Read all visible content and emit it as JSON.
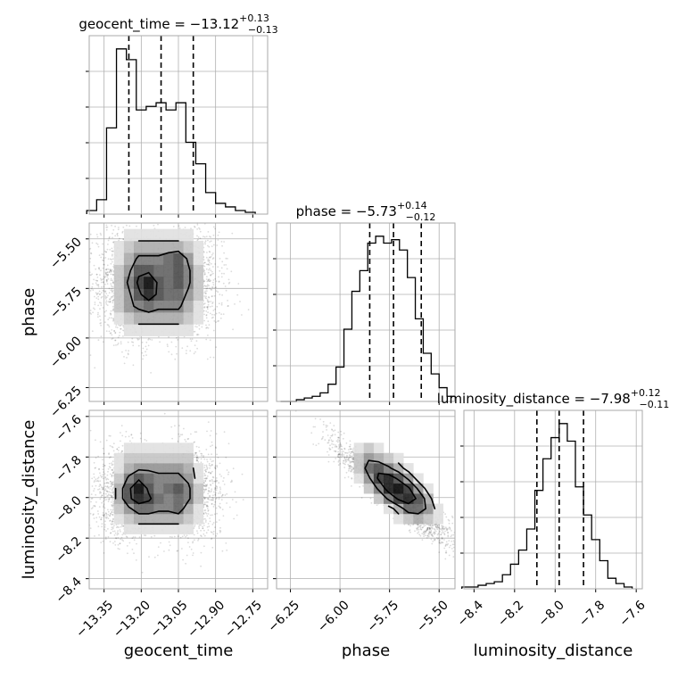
{
  "chart_data": {
    "type": "corner",
    "parameters": [
      "geocent_time",
      "phase",
      "luminosity_distance"
    ],
    "titles": [
      {
        "prefix": "geocent_time = −13.12",
        "plus": "+0.13",
        "minus": "−0.13"
      },
      {
        "prefix": "phase = −5.73",
        "plus": "+0.14",
        "minus": "−0.12"
      },
      {
        "prefix": "luminosity_distance = −7.98",
        "plus": "+0.12",
        "minus": "−0.11"
      }
    ],
    "axis_labels": {
      "x": [
        "geocent_time",
        "phase",
        "luminosity_distance"
      ],
      "y": [
        "phase",
        "luminosity_distance"
      ]
    },
    "ranges": {
      "geocent_time": [
        -13.41,
        -12.69
      ],
      "phase": [
        -6.32,
        -5.42
      ],
      "luminosity_distance": [
        -8.45,
        -7.57
      ]
    },
    "ticks": {
      "geocent_time": {
        "values": [
          -13.35,
          -13.2,
          -13.05,
          -12.9,
          -12.75
        ],
        "labels": [
          "−13.35",
          "−13.20",
          "−13.05",
          "−12.90",
          "−12.75"
        ]
      },
      "phase": {
        "values": [
          -6.25,
          -6.0,
          -5.75,
          -5.5
        ],
        "labels": [
          "−6.25",
          "−6.00",
          "−5.75",
          "−5.50"
        ]
      },
      "luminosity_distance": {
        "values": [
          -8.4,
          -8.2,
          -8.0,
          -7.8,
          -7.6
        ],
        "labels": [
          "−8.4",
          "−8.2",
          "−8.0",
          "−7.8",
          "−7.6"
        ]
      }
    },
    "quantiles": {
      "geocent_time": [
        -13.25,
        -13.12,
        -12.99
      ],
      "phase": [
        -5.85,
        -5.73,
        -5.59
      ],
      "luminosity_distance": [
        -8.09,
        -7.98,
        -7.86
      ]
    },
    "histograms": {
      "geocent_time": {
        "bin_edges": [
          -13.42,
          -13.38,
          -13.34,
          -13.3,
          -13.26,
          -13.22,
          -13.18,
          -13.14,
          -13.1,
          -13.06,
          -13.02,
          -12.98,
          -12.94,
          -12.9,
          -12.86,
          -12.82,
          -12.78,
          -12.74
        ],
        "counts": [
          2,
          8,
          48,
          92,
          86,
          58,
          60,
          62,
          58,
          62,
          40,
          28,
          12,
          6,
          4,
          2,
          1
        ]
      },
      "phase": {
        "bin_edges": [
          -6.3,
          -6.26,
          -6.22,
          -6.18,
          -6.14,
          -6.1,
          -6.06,
          -6.02,
          -5.98,
          -5.94,
          -5.9,
          -5.86,
          -5.82,
          -5.78,
          -5.74,
          -5.7,
          -5.66,
          -5.62,
          -5.58,
          -5.54,
          -5.5,
          -5.46,
          -5.42
        ],
        "counts": [
          0,
          0,
          1,
          2,
          3,
          5,
          10,
          20,
          42,
          64,
          76,
          92,
          96,
          92,
          94,
          88,
          72,
          48,
          28,
          16,
          8,
          3
        ]
      },
      "luminosity_distance": {
        "bin_edges": [
          -8.46,
          -8.42,
          -8.38,
          -8.34,
          -8.3,
          -8.26,
          -8.22,
          -8.18,
          -8.14,
          -8.1,
          -8.06,
          -8.02,
          -7.98,
          -7.94,
          -7.9,
          -7.86,
          -7.82,
          -7.78,
          -7.74,
          -7.7,
          -7.66,
          -7.62
        ],
        "counts": [
          1,
          1,
          2,
          3,
          4,
          8,
          14,
          22,
          34,
          56,
          74,
          86,
          94,
          84,
          58,
          42,
          28,
          16,
          6,
          3,
          1
        ]
      }
    },
    "hist2d": {
      "geocent_time_vs_phase": {
        "x_edges": [
          -13.31,
          -13.27,
          -13.23,
          -13.19,
          -13.15,
          -13.11,
          -13.07,
          -13.03,
          -12.99,
          -12.95
        ],
        "y_edges": [
          -5.99,
          -5.93,
          -5.87,
          -5.81,
          -5.75,
          -5.69,
          -5.63,
          -5.57,
          -5.51,
          -5.45
        ],
        "counts": [
          [
            0,
            1,
            1,
            1,
            1,
            1,
            1,
            1,
            0
          ],
          [
            1,
            2,
            3,
            3,
            3,
            3,
            3,
            2,
            1
          ],
          [
            2,
            4,
            5,
            6,
            5,
            5,
            5,
            3,
            1
          ],
          [
            2,
            4,
            7,
            9,
            7,
            6,
            6,
            4,
            2
          ],
          [
            2,
            5,
            8,
            10,
            7,
            6,
            7,
            5,
            2
          ],
          [
            2,
            4,
            7,
            7,
            6,
            6,
            7,
            5,
            2
          ],
          [
            1,
            3,
            5,
            5,
            5,
            6,
            7,
            4,
            1
          ],
          [
            1,
            2,
            3,
            3,
            3,
            3,
            3,
            2,
            1
          ],
          [
            0,
            1,
            1,
            1,
            1,
            1,
            1,
            1,
            0
          ]
        ]
      },
      "geocent_time_vs_luminosity_distance": {
        "x_edges": [
          -13.31,
          -13.27,
          -13.23,
          -13.19,
          -13.15,
          -13.11,
          -13.07,
          -13.03,
          -12.99,
          -12.95
        ],
        "y_edges": [
          -8.18,
          -8.13,
          -8.08,
          -8.03,
          -7.98,
          -7.93,
          -7.88,
          -7.83,
          -7.78,
          -7.73
        ],
        "counts": [
          [
            0,
            1,
            1,
            1,
            1,
            1,
            1,
            1,
            0
          ],
          [
            1,
            2,
            3,
            3,
            3,
            3,
            3,
            2,
            1
          ],
          [
            2,
            4,
            6,
            6,
            5,
            5,
            6,
            3,
            1
          ],
          [
            3,
            7,
            9,
            8,
            6,
            5,
            6,
            5,
            2
          ],
          [
            3,
            7,
            10,
            7,
            5,
            6,
            7,
            5,
            2
          ],
          [
            2,
            5,
            7,
            6,
            5,
            5,
            5,
            4,
            1
          ],
          [
            1,
            3,
            4,
            4,
            4,
            4,
            4,
            3,
            1
          ],
          [
            1,
            2,
            2,
            2,
            2,
            2,
            2,
            2,
            0
          ],
          [
            0,
            1,
            1,
            1,
            1,
            1,
            1,
            1,
            0
          ]
        ]
      },
      "phase_vs_luminosity_distance": {
        "x_edges": [
          -5.93,
          -5.88,
          -5.83,
          -5.78,
          -5.73,
          -5.68,
          -5.63,
          -5.58,
          -5.53,
          -5.48
        ],
        "y_edges": [
          -8.13,
          -8.08,
          -8.03,
          -7.98,
          -7.93,
          -7.88,
          -7.83,
          -7.78,
          -7.73
        ],
        "counts": [
          [
            0,
            0,
            0,
            0,
            1,
            2,
            3,
            2,
            1
          ],
          [
            0,
            0,
            0,
            1,
            3,
            6,
            6,
            4,
            1
          ],
          [
            0,
            0,
            2,
            5,
            8,
            9,
            7,
            3,
            0
          ],
          [
            0,
            2,
            5,
            9,
            10,
            8,
            4,
            1,
            0
          ],
          [
            1,
            4,
            8,
            9,
            7,
            4,
            1,
            0,
            0
          ],
          [
            2,
            6,
            7,
            5,
            3,
            1,
            0,
            0,
            0
          ],
          [
            2,
            4,
            3,
            2,
            1,
            0,
            0,
            0,
            0
          ],
          [
            1,
            2,
            1,
            0,
            0,
            0,
            0,
            0,
            0
          ]
        ]
      }
    },
    "scatter_model": {
      "geocent_time_vs_phase": {
        "x_modes": [
          -13.25,
          -13.0
        ],
        "x_mode_weights": [
          0.55,
          0.45
        ],
        "x_sd": 0.07,
        "y_mean": -5.73,
        "y_sd": 0.14,
        "correlation": 0.0,
        "n": 2400
      },
      "geocent_time_vs_luminosity_distance": {
        "x_modes": [
          -13.25,
          -13.0
        ],
        "x_mode_weights": [
          0.55,
          0.45
        ],
        "x_sd": 0.07,
        "y_mean": -7.98,
        "y_sd": 0.12,
        "correlation": 0.0,
        "n": 2400
      },
      "phase_vs_luminosity_distance": {
        "x_modes": [
          -5.73
        ],
        "x_mode_weights": [
          1.0
        ],
        "x_sd": 0.14,
        "y_mean": -7.98,
        "y_sd": 0.12,
        "correlation": -0.93,
        "n": 2400
      }
    },
    "contour_levels": [
      0.2,
      0.45,
      0.75
    ],
    "grid": true
  }
}
